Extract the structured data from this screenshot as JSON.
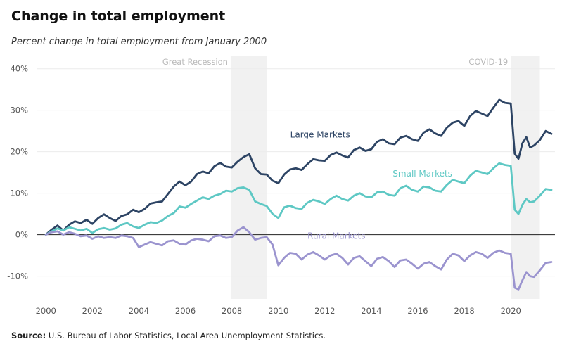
{
  "chart": {
    "title": "Change in total employment",
    "subtitle": "Percent change in total employment from January 2000",
    "source_label": "Source:",
    "source_text": "U.S. Bureau of Labor Statistics, Local Area Unemployment Statistics."
  },
  "chart_data": {
    "type": "line",
    "x_ticks": [
      "2000",
      "2002",
      "2004",
      "2006",
      "2008",
      "2010",
      "2012",
      "2014",
      "2016",
      "2018",
      "2020"
    ],
    "y_ticks": [
      "40%",
      "30%",
      "20%",
      "10%",
      "0%",
      "-10%"
    ],
    "y_tick_values": [
      40,
      30,
      20,
      10,
      0,
      -10
    ],
    "xlim": [
      1999.6,
      2021.9
    ],
    "ylim": [
      -15.5,
      43
    ],
    "grid": true,
    "shaded_periods": [
      {
        "label": "Great Recession",
        "start": 2007.95,
        "end": 2009.5
      },
      {
        "label": "COVID-19",
        "start": 2020.0,
        "end": 2021.25
      }
    ],
    "series": [
      {
        "name": "Large Markets",
        "color": "#2d4464",
        "points": [
          [
            2000.0,
            0
          ],
          [
            2000.25,
            1.2
          ],
          [
            2000.5,
            2.2
          ],
          [
            2000.75,
            1.0
          ],
          [
            2001.0,
            2.4
          ],
          [
            2001.25,
            3.2
          ],
          [
            2001.5,
            2.8
          ],
          [
            2001.75,
            3.6
          ],
          [
            2002.0,
            2.6
          ],
          [
            2002.25,
            4.0
          ],
          [
            2002.5,
            4.9
          ],
          [
            2002.75,
            4.0
          ],
          [
            2003.0,
            3.3
          ],
          [
            2003.25,
            4.5
          ],
          [
            2003.5,
            4.9
          ],
          [
            2003.75,
            6.0
          ],
          [
            2004.0,
            5.4
          ],
          [
            2004.25,
            6.2
          ],
          [
            2004.5,
            7.5
          ],
          [
            2004.75,
            7.8
          ],
          [
            2005.0,
            8.0
          ],
          [
            2005.25,
            9.8
          ],
          [
            2005.5,
            11.6
          ],
          [
            2005.75,
            12.8
          ],
          [
            2006.0,
            11.9
          ],
          [
            2006.25,
            12.8
          ],
          [
            2006.5,
            14.6
          ],
          [
            2006.75,
            15.2
          ],
          [
            2007.0,
            14.8
          ],
          [
            2007.25,
            16.5
          ],
          [
            2007.5,
            17.3
          ],
          [
            2007.75,
            16.4
          ],
          [
            2008.0,
            16.2
          ],
          [
            2008.25,
            17.6
          ],
          [
            2008.5,
            18.7
          ],
          [
            2008.75,
            19.4
          ],
          [
            2009.0,
            16.0
          ],
          [
            2009.25,
            14.6
          ],
          [
            2009.5,
            14.5
          ],
          [
            2009.75,
            13.0
          ],
          [
            2010.0,
            12.4
          ],
          [
            2010.25,
            14.5
          ],
          [
            2010.5,
            15.7
          ],
          [
            2010.75,
            16.0
          ],
          [
            2011.0,
            15.6
          ],
          [
            2011.25,
            17.0
          ],
          [
            2011.5,
            18.2
          ],
          [
            2011.75,
            17.9
          ],
          [
            2012.0,
            17.8
          ],
          [
            2012.25,
            19.2
          ],
          [
            2012.5,
            19.8
          ],
          [
            2012.75,
            19.1
          ],
          [
            2013.0,
            18.6
          ],
          [
            2013.25,
            20.4
          ],
          [
            2013.5,
            21.0
          ],
          [
            2013.75,
            20.2
          ],
          [
            2014.0,
            20.6
          ],
          [
            2014.25,
            22.4
          ],
          [
            2014.5,
            23.0
          ],
          [
            2014.75,
            22.0
          ],
          [
            2015.0,
            21.8
          ],
          [
            2015.25,
            23.4
          ],
          [
            2015.5,
            23.8
          ],
          [
            2015.75,
            23.0
          ],
          [
            2016.0,
            22.6
          ],
          [
            2016.25,
            24.6
          ],
          [
            2016.5,
            25.4
          ],
          [
            2016.75,
            24.4
          ],
          [
            2017.0,
            23.8
          ],
          [
            2017.25,
            25.8
          ],
          [
            2017.5,
            27.0
          ],
          [
            2017.75,
            27.4
          ],
          [
            2018.0,
            26.2
          ],
          [
            2018.25,
            28.6
          ],
          [
            2018.5,
            29.8
          ],
          [
            2018.75,
            29.2
          ],
          [
            2019.0,
            28.6
          ],
          [
            2019.25,
            30.6
          ],
          [
            2019.5,
            32.5
          ],
          [
            2019.75,
            31.8
          ],
          [
            2020.0,
            31.6
          ],
          [
            2020.17,
            19.5
          ],
          [
            2020.33,
            18.3
          ],
          [
            2020.5,
            22.0
          ],
          [
            2020.67,
            23.5
          ],
          [
            2020.83,
            21.0
          ],
          [
            2021.0,
            21.5
          ],
          [
            2021.25,
            22.8
          ],
          [
            2021.5,
            25.0
          ],
          [
            2021.75,
            24.3
          ]
        ]
      },
      {
        "name": "Small Markets",
        "color": "#5ec8c4",
        "points": [
          [
            2000.0,
            0
          ],
          [
            2000.25,
            0.8
          ],
          [
            2000.5,
            1.5
          ],
          [
            2000.75,
            1.0
          ],
          [
            2001.0,
            1.8
          ],
          [
            2001.25,
            1.4
          ],
          [
            2001.5,
            1.0
          ],
          [
            2001.75,
            1.4
          ],
          [
            2002.0,
            0.4
          ],
          [
            2002.25,
            1.3
          ],
          [
            2002.5,
            1.6
          ],
          [
            2002.75,
            1.2
          ],
          [
            2003.0,
            1.5
          ],
          [
            2003.25,
            2.4
          ],
          [
            2003.5,
            2.8
          ],
          [
            2003.75,
            2.0
          ],
          [
            2004.0,
            1.6
          ],
          [
            2004.25,
            2.4
          ],
          [
            2004.5,
            3.0
          ],
          [
            2004.75,
            2.8
          ],
          [
            2005.0,
            3.4
          ],
          [
            2005.25,
            4.5
          ],
          [
            2005.5,
            5.2
          ],
          [
            2005.75,
            6.8
          ],
          [
            2006.0,
            6.5
          ],
          [
            2006.25,
            7.4
          ],
          [
            2006.5,
            8.2
          ],
          [
            2006.75,
            9.0
          ],
          [
            2007.0,
            8.6
          ],
          [
            2007.25,
            9.4
          ],
          [
            2007.5,
            9.8
          ],
          [
            2007.75,
            10.6
          ],
          [
            2008.0,
            10.4
          ],
          [
            2008.25,
            11.2
          ],
          [
            2008.5,
            11.4
          ],
          [
            2008.75,
            10.8
          ],
          [
            2009.0,
            8.0
          ],
          [
            2009.25,
            7.4
          ],
          [
            2009.5,
            6.9
          ],
          [
            2009.75,
            5.0
          ],
          [
            2010.0,
            4.0
          ],
          [
            2010.25,
            6.6
          ],
          [
            2010.5,
            7.0
          ],
          [
            2010.75,
            6.4
          ],
          [
            2011.0,
            6.2
          ],
          [
            2011.25,
            7.7
          ],
          [
            2011.5,
            8.4
          ],
          [
            2011.75,
            8.0
          ],
          [
            2012.0,
            7.4
          ],
          [
            2012.25,
            8.6
          ],
          [
            2012.5,
            9.4
          ],
          [
            2012.75,
            8.6
          ],
          [
            2013.0,
            8.2
          ],
          [
            2013.25,
            9.4
          ],
          [
            2013.5,
            10.0
          ],
          [
            2013.75,
            9.2
          ],
          [
            2014.0,
            9.0
          ],
          [
            2014.25,
            10.2
          ],
          [
            2014.5,
            10.4
          ],
          [
            2014.75,
            9.6
          ],
          [
            2015.0,
            9.4
          ],
          [
            2015.25,
            11.2
          ],
          [
            2015.5,
            11.8
          ],
          [
            2015.75,
            10.8
          ],
          [
            2016.0,
            10.4
          ],
          [
            2016.25,
            11.6
          ],
          [
            2016.5,
            11.4
          ],
          [
            2016.75,
            10.6
          ],
          [
            2017.0,
            10.4
          ],
          [
            2017.25,
            12.0
          ],
          [
            2017.5,
            13.2
          ],
          [
            2017.75,
            12.8
          ],
          [
            2018.0,
            12.4
          ],
          [
            2018.25,
            14.2
          ],
          [
            2018.5,
            15.4
          ],
          [
            2018.75,
            15.0
          ],
          [
            2019.0,
            14.6
          ],
          [
            2019.25,
            16.0
          ],
          [
            2019.5,
            17.2
          ],
          [
            2019.75,
            16.8
          ],
          [
            2020.0,
            16.6
          ],
          [
            2020.17,
            6.0
          ],
          [
            2020.33,
            5.0
          ],
          [
            2020.5,
            7.2
          ],
          [
            2020.67,
            8.6
          ],
          [
            2020.83,
            7.8
          ],
          [
            2021.0,
            8.0
          ],
          [
            2021.25,
            9.4
          ],
          [
            2021.5,
            11.0
          ],
          [
            2021.75,
            10.8
          ]
        ]
      },
      {
        "name": "Rural Markets",
        "color": "#9b94cf",
        "points": [
          [
            2000.0,
            0
          ],
          [
            2000.25,
            0.6
          ],
          [
            2000.5,
            0.8
          ],
          [
            2000.75,
            0.0
          ],
          [
            2001.0,
            0.6
          ],
          [
            2001.25,
            0.2
          ],
          [
            2001.5,
            -0.4
          ],
          [
            2001.75,
            -0.2
          ],
          [
            2002.0,
            -1.0
          ],
          [
            2002.25,
            -0.4
          ],
          [
            2002.5,
            -0.8
          ],
          [
            2002.75,
            -0.6
          ],
          [
            2003.0,
            -0.8
          ],
          [
            2003.25,
            -0.2
          ],
          [
            2003.5,
            -0.4
          ],
          [
            2003.75,
            -0.8
          ],
          [
            2004.0,
            -3.0
          ],
          [
            2004.25,
            -2.4
          ],
          [
            2004.5,
            -1.8
          ],
          [
            2004.75,
            -2.2
          ],
          [
            2005.0,
            -2.6
          ],
          [
            2005.25,
            -1.6
          ],
          [
            2005.5,
            -1.4
          ],
          [
            2005.75,
            -2.2
          ],
          [
            2006.0,
            -2.4
          ],
          [
            2006.25,
            -1.4
          ],
          [
            2006.5,
            -1.0
          ],
          [
            2006.75,
            -1.2
          ],
          [
            2007.0,
            -1.6
          ],
          [
            2007.25,
            -0.4
          ],
          [
            2007.5,
            -0.2
          ],
          [
            2007.75,
            -0.8
          ],
          [
            2008.0,
            -0.6
          ],
          [
            2008.25,
            1.0
          ],
          [
            2008.5,
            1.8
          ],
          [
            2008.75,
            0.6
          ],
          [
            2009.0,
            -1.2
          ],
          [
            2009.25,
            -0.8
          ],
          [
            2009.5,
            -0.6
          ],
          [
            2009.75,
            -2.4
          ],
          [
            2010.0,
            -7.4
          ],
          [
            2010.25,
            -5.6
          ],
          [
            2010.5,
            -4.4
          ],
          [
            2010.75,
            -4.6
          ],
          [
            2011.0,
            -6.0
          ],
          [
            2011.25,
            -4.8
          ],
          [
            2011.5,
            -4.2
          ],
          [
            2011.75,
            -5.0
          ],
          [
            2012.0,
            -6.0
          ],
          [
            2012.25,
            -5.0
          ],
          [
            2012.5,
            -4.6
          ],
          [
            2012.75,
            -5.6
          ],
          [
            2013.0,
            -7.2
          ],
          [
            2013.25,
            -5.6
          ],
          [
            2013.5,
            -5.2
          ],
          [
            2013.75,
            -6.4
          ],
          [
            2014.0,
            -7.6
          ],
          [
            2014.25,
            -5.8
          ],
          [
            2014.5,
            -5.4
          ],
          [
            2014.75,
            -6.4
          ],
          [
            2015.0,
            -7.8
          ],
          [
            2015.25,
            -6.2
          ],
          [
            2015.5,
            -6.0
          ],
          [
            2015.75,
            -7.0
          ],
          [
            2016.0,
            -8.2
          ],
          [
            2016.25,
            -7.0
          ],
          [
            2016.5,
            -6.6
          ],
          [
            2016.75,
            -7.6
          ],
          [
            2017.0,
            -8.4
          ],
          [
            2017.25,
            -6.0
          ],
          [
            2017.5,
            -4.6
          ],
          [
            2017.75,
            -5.0
          ],
          [
            2018.0,
            -6.4
          ],
          [
            2018.25,
            -5.0
          ],
          [
            2018.5,
            -4.2
          ],
          [
            2018.75,
            -4.6
          ],
          [
            2019.0,
            -5.6
          ],
          [
            2019.25,
            -4.4
          ],
          [
            2019.5,
            -3.8
          ],
          [
            2019.75,
            -4.4
          ],
          [
            2020.0,
            -4.6
          ],
          [
            2020.17,
            -12.8
          ],
          [
            2020.33,
            -13.2
          ],
          [
            2020.5,
            -11.0
          ],
          [
            2020.67,
            -9.0
          ],
          [
            2020.83,
            -10.0
          ],
          [
            2021.0,
            -10.2
          ],
          [
            2021.25,
            -8.6
          ],
          [
            2021.5,
            -6.8
          ],
          [
            2021.75,
            -6.6
          ]
        ]
      }
    ]
  }
}
